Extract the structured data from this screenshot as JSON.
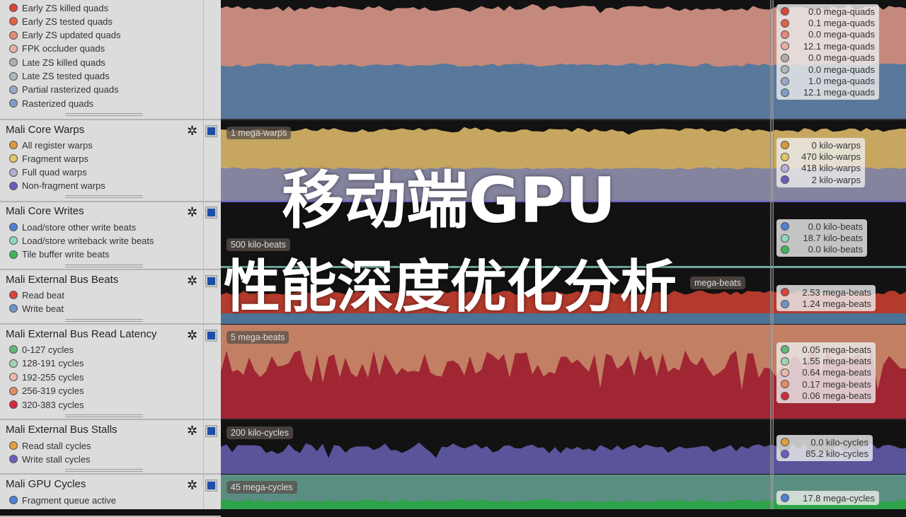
{
  "overlay": {
    "title_line1": "移动端GPU",
    "title_line2": "性能深度优化分析"
  },
  "sections": [
    {
      "title": "",
      "axis_label": "",
      "items": [
        {
          "label": "Early ZS killed quads",
          "value": "0.0 mega-quads",
          "color": "#d9443c"
        },
        {
          "label": "Early ZS tested quads",
          "value": "0.1 mega-quads",
          "color": "#df6248"
        },
        {
          "label": "Early ZS updated quads",
          "value": "0.0 mega-quads",
          "color": "#e38a78"
        },
        {
          "label": "FPK occluder quads",
          "value": "12.1 mega-quads",
          "color": "#e8b0a2"
        },
        {
          "label": "Late ZS killed quads",
          "value": "0.0 mega-quads",
          "color": "#b5aca7"
        },
        {
          "label": "Late ZS tested quads",
          "value": "0.0 mega-quads",
          "color": "#a9bbbd"
        },
        {
          "label": "Partial rasterized quads",
          "value": "1.0 mega-quads",
          "color": "#96aac6"
        },
        {
          "label": "Rasterized quads",
          "value": "12.1 mega-quads",
          "color": "#7f9ec6"
        }
      ]
    },
    {
      "title": "Mali Core Warps",
      "axis_label": "1 mega-warps",
      "items": [
        {
          "label": "All register warps",
          "value": "0 kilo-warps",
          "color": "#d99a3e"
        },
        {
          "label": "Fragment warps",
          "value": "470 kilo-warps",
          "color": "#e3c56a"
        },
        {
          "label": "Full quad warps",
          "value": "418 kilo-warps",
          "color": "#b4aed4"
        },
        {
          "label": "Non-fragment warps",
          "value": "2 kilo-warps",
          "color": "#6a5cb8"
        }
      ]
    },
    {
      "title": "Mali Core Writes",
      "axis_label": "500 kilo-beats",
      "items": [
        {
          "label": "Load/store other write beats",
          "value": "0.0 kilo-beats",
          "color": "#4f7fd6"
        },
        {
          "label": "Load/store writeback write beats",
          "value": "18.7 kilo-beats",
          "color": "#8fd6bd"
        },
        {
          "label": "Tile buffer write beats",
          "value": "0.0 kilo-beats",
          "color": "#3db65a"
        }
      ]
    },
    {
      "title": "Mali External Bus Beats",
      "axis_label": "mega-beats",
      "items": [
        {
          "label": "Read beat",
          "value": "2.53 mega-beats",
          "color": "#d9443c"
        },
        {
          "label": "Write beat",
          "value": "1.24 mega-beats",
          "color": "#6f94c4"
        }
      ]
    },
    {
      "title": "Mali External Bus Read Latency",
      "axis_label": "5 mega-beats",
      "items": [
        {
          "label": "0-127 cycles",
          "value": "0.05 mega-beats",
          "color": "#62b774"
        },
        {
          "label": "128-191 cycles",
          "value": "1.55 mega-beats",
          "color": "#a5d2b0"
        },
        {
          "label": "192-255 cycles",
          "value": "0.64 mega-beats",
          "color": "#e9b8a6"
        },
        {
          "label": "256-319 cycles",
          "value": "0.17 mega-beats",
          "color": "#e08d68"
        },
        {
          "label": "320-383 cycles",
          "value": "0.06 mega-beats",
          "color": "#d4283d"
        }
      ]
    },
    {
      "title": "Mali External Bus Stalls",
      "axis_label": "200 kilo-cycles",
      "items": [
        {
          "label": "Read stall cycles",
          "value": "0.0 kilo-cycles",
          "color": "#e0a13a"
        },
        {
          "label": "Write stall cycles",
          "value": "85.2 kilo-cycles",
          "color": "#6f5cc0"
        }
      ]
    },
    {
      "title": "Mali GPU Cycles",
      "axis_label": "45 mega-cycles",
      "items": [
        {
          "label": "Fragment queue active",
          "value": "17.8 mega-cycles",
          "color": "#4f7fd6"
        }
      ]
    }
  ],
  "icons": {
    "settings": "gear-icon",
    "visibility": "checkbox-icon"
  }
}
